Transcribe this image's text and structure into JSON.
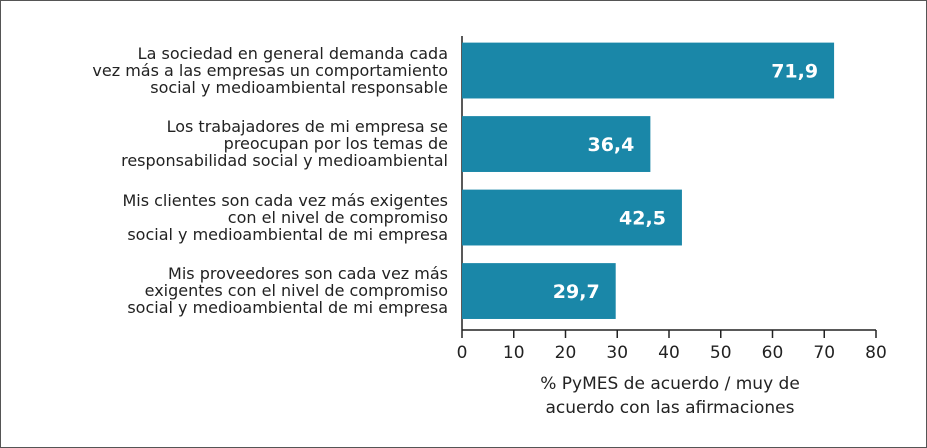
{
  "chart_data": {
    "type": "bar",
    "orientation": "horizontal",
    "categories": [
      "La sociedad en general demanda cada\nvez más a las empresas un comportamiento\nsocial y medioambiental responsable",
      "Los trabajadores de mi empresa se\npreocupan por los temas de\nresponsabilidad social y medioambiental",
      "Mis clientes son cada vez más exigentes\ncon el nivel de compromiso\nsocial y medioambiental de mi empresa",
      "Mis proveedores son cada vez más\nexigentes con el nivel de compromiso\nsocial y medioambiental de mi empresa"
    ],
    "values": [
      71.9,
      36.4,
      42.5,
      29.7
    ],
    "value_labels": [
      "71,9",
      "36,4",
      "42,5",
      "29,7"
    ],
    "color": "#1a87a8",
    "xlabel": "% PyMES de acuerdo / muy de\nacuerdo con las afirmaciones",
    "xlim": [
      0,
      80
    ],
    "xticks": [
      0,
      10,
      20,
      30,
      40,
      50,
      60,
      70,
      80
    ],
    "grid": false
  }
}
